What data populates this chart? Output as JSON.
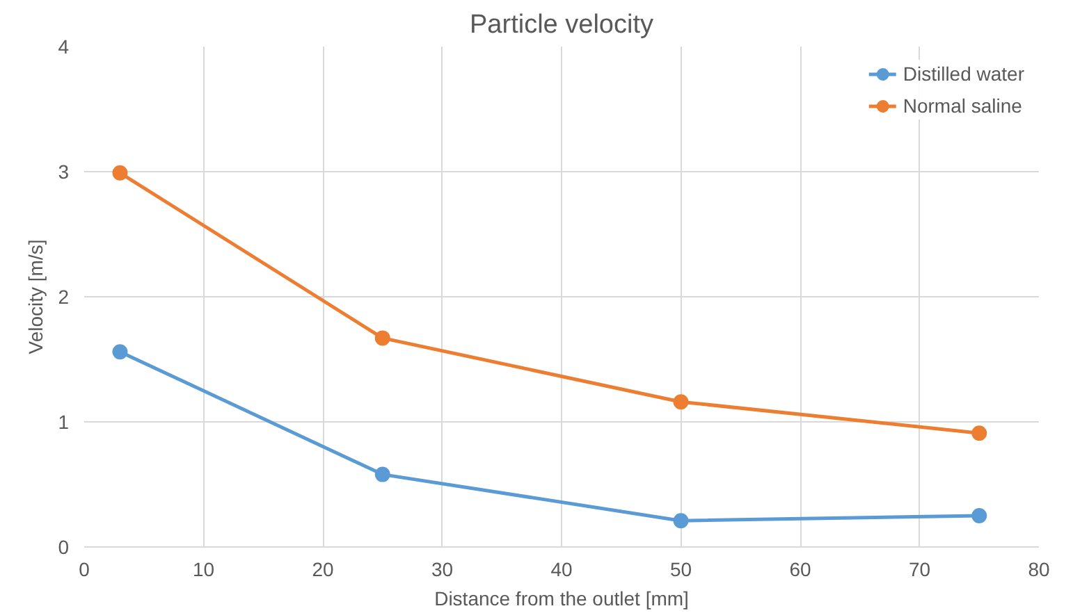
{
  "chart_data": {
    "type": "line",
    "title": "Particle velocity",
    "xlabel": "Distance from the outlet [mm]",
    "ylabel": "Velocity [m/s]",
    "x": [
      3,
      25,
      50,
      75
    ],
    "series": [
      {
        "name": "Distilled water",
        "color": "#5b9bd5",
        "values": [
          1.56,
          0.58,
          0.21,
          0.25
        ]
      },
      {
        "name": "Normal saline",
        "color": "#ed7d31",
        "values": [
          2.99,
          1.67,
          1.16,
          0.91
        ]
      }
    ],
    "xlim": [
      0,
      80
    ],
    "xticks": [
      0,
      10,
      20,
      30,
      40,
      50,
      60,
      70,
      80
    ],
    "ylim": [
      0,
      4
    ],
    "yticks": [
      0,
      1,
      2,
      3,
      4
    ],
    "grid": true,
    "legend": "top right",
    "marker": "circle",
    "line_style": "solid"
  }
}
